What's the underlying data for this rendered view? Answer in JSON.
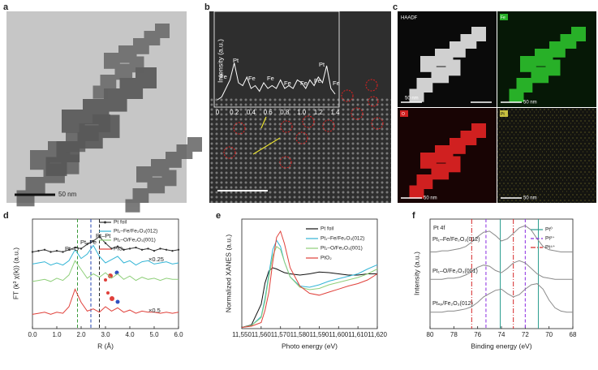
{
  "panel_labels": [
    "a",
    "b",
    "c",
    "d",
    "e",
    "f"
  ],
  "images": {
    "a_scale": "50 nm",
    "c_labels": [
      "HAADF",
      "Fe",
      "O",
      "Pt"
    ],
    "c_scales": [
      "50 nm",
      "50 nm",
      "50 nm",
      "50 nm"
    ]
  },
  "chart_data": [
    {
      "type": "line",
      "ylabel": "Intensity (a.u.)",
      "x": [
        0,
        0.05,
        0.1,
        0.15,
        0.2,
        0.25,
        0.3,
        0.35,
        0.4,
        0.45,
        0.5,
        0.55,
        0.6,
        0.65,
        0.7,
        0.75,
        0.8,
        0.85,
        0.9,
        0.95,
        1.0,
        1.05,
        1.1,
        1.15,
        1.2,
        1.25,
        1.3,
        1.35,
        1.4
      ],
      "series": [
        {
          "color": "#ffffff",
          "values": [
            0.1,
            0.15,
            0.3,
            0.45,
            0.75,
            0.4,
            0.35,
            0.5,
            0.3,
            0.35,
            0.25,
            0.4,
            0.3,
            0.35,
            0.3,
            0.45,
            0.3,
            0.35,
            0.3,
            0.45,
            0.4,
            0.3,
            0.45,
            0.35,
            0.5,
            0.4,
            0.7,
            0.3,
            0.2
          ]
        }
      ],
      "xlim": [
        0,
        1.4
      ],
      "ylim": [
        0,
        1
      ],
      "xticks": [
        0,
        0.2,
        0.4,
        0.6,
        0.8,
        {
          "value": 1,
          "label": "1.0"
        },
        1.2,
        1.4
      ],
      "annotations": [
        "Fe",
        "Pt",
        "Fe",
        "Fe",
        "Fe",
        "Fe",
        "Fe",
        "Pt",
        "Fe"
      ]
    },
    {
      "type": "line",
      "xlabel": "R (Å)",
      "ylabel": "FT (k³ χ(k)) (a.u.)",
      "x": [
        0,
        0.25,
        0.5,
        0.75,
        1,
        1.25,
        1.5,
        1.75,
        2,
        2.25,
        2.5,
        2.75,
        3,
        3.25,
        3.5,
        3.75,
        4,
        4.25,
        4.5,
        4.75,
        5,
        5.25,
        5.5,
        5.75,
        6
      ],
      "series": [
        {
          "name": "Pt foil",
          "color": "#333333",
          "marker": true,
          "values": [
            7.0,
            7.1,
            7.2,
            7.0,
            7.1,
            7.0,
            7.2,
            7.4,
            7.3,
            7.7,
            8.0,
            8.4,
            7.8,
            7.3,
            7.5,
            7.2,
            7.3,
            7.4,
            7.2,
            7.3,
            7.1,
            7.3,
            7.2,
            7.1,
            7.2
          ]
        },
        {
          "name": "Pt₁–Fe/Fe₂O₃(012)",
          "color": "#33b5d6",
          "values": [
            5.9,
            6.0,
            6.1,
            5.8,
            6.0,
            5.8,
            6.2,
            7.2,
            6.4,
            6.8,
            7.6,
            6.6,
            6.0,
            6.3,
            6.6,
            6.0,
            6.2,
            5.8,
            6.1,
            6.2,
            5.9,
            6.0,
            6.1,
            5.9,
            6.0
          ]
        },
        {
          "name": "Pt₁–O/Fe₂O₃(001)",
          "color": "#8fcf7a",
          "values": [
            4.3,
            4.4,
            4.5,
            4.3,
            4.6,
            4.4,
            4.9,
            6.2,
            5.4,
            4.6,
            5.0,
            4.7,
            5.1,
            4.6,
            5.0,
            4.5,
            4.8,
            4.4,
            4.7,
            4.5,
            4.6,
            4.4,
            4.6,
            4.5,
            4.5
          ]
        },
        {
          "name": "PtO₂",
          "color": "#e0403a",
          "values": [
            1.3,
            1.4,
            1.5,
            1.3,
            1.5,
            1.4,
            2.0,
            3.6,
            2.4,
            1.6,
            1.8,
            1.5,
            2.0,
            1.6,
            1.9,
            1.5,
            1.7,
            1.4,
            1.6,
            1.5,
            1.5,
            1.4,
            1.5,
            1.4,
            1.5
          ]
        }
      ],
      "xlim": [
        0,
        6
      ],
      "ylim": [
        0,
        10
      ],
      "xticks": [
        {
          "value": 0,
          "label": "0.0"
        },
        {
          "value": 1,
          "label": "1.0"
        },
        {
          "value": 2,
          "label": "2.0"
        },
        {
          "value": 3,
          "label": "3.0"
        },
        {
          "value": 4,
          "label": "4.0"
        },
        {
          "value": 5,
          "label": "5.0"
        },
        {
          "value": 6,
          "label": "6.0"
        }
      ],
      "vlines": [
        {
          "x": 1.85,
          "color": "#3a9a3a",
          "dash": "dashed"
        },
        {
          "x": 2.4,
          "color": "#2040b0",
          "dash": "dashed"
        },
        {
          "x": 2.75,
          "color": "#222222",
          "dash": "dashed"
        }
      ],
      "annotations": [
        "Pt–O",
        "Pt–Fe",
        "Pt–Pt",
        "×0.25",
        "×0.5"
      ]
    },
    {
      "type": "line",
      "xlabel": "Photo energy (eV)",
      "ylabel": "Normalized XANES (a.u.)",
      "x": [
        11550,
        11555,
        11560,
        11562,
        11564,
        11566,
        11568,
        11570,
        11572,
        11575,
        11580,
        11585,
        11590,
        11595,
        11600,
        11605,
        11610,
        11615,
        11620
      ],
      "series": [
        {
          "name": "Pt foil",
          "color": "#111111",
          "values": [
            0.02,
            0.06,
            0.4,
            0.75,
            0.95,
            1.0,
            0.98,
            0.95,
            0.92,
            0.9,
            0.88,
            0.9,
            0.93,
            0.92,
            0.9,
            0.88,
            0.88,
            0.9,
            0.9
          ]
        },
        {
          "name": "Pt₁–Fe/Fe₂O₃(012)",
          "color": "#33b5d6",
          "values": [
            0.02,
            0.05,
            0.2,
            0.5,
            0.9,
            1.3,
            1.45,
            1.35,
            1.1,
            0.85,
            0.7,
            0.68,
            0.72,
            0.78,
            0.82,
            0.86,
            0.9,
            0.98,
            1.05
          ]
        },
        {
          "name": "Pt₁–O/Fe₂O₃(001)",
          "color": "#8fcf7a",
          "values": [
            0.02,
            0.05,
            0.18,
            0.45,
            0.85,
            1.2,
            1.35,
            1.3,
            1.1,
            0.85,
            0.68,
            0.64,
            0.66,
            0.72,
            0.76,
            0.8,
            0.84,
            0.9,
            0.98
          ]
        },
        {
          "name": "PtO₂",
          "color": "#e0403a",
          "values": [
            0.02,
            0.04,
            0.1,
            0.3,
            0.6,
            1.1,
            1.5,
            1.6,
            1.4,
            1.0,
            0.7,
            0.58,
            0.55,
            0.6,
            0.65,
            0.7,
            0.74,
            0.8,
            0.9
          ]
        }
      ],
      "xlim": [
        11550,
        11620
      ],
      "ylim": [
        0,
        1.8
      ],
      "xticks": [
        {
          "value": 11550,
          "label": "11,550"
        },
        {
          "value": 11560,
          "label": "11,560"
        },
        {
          "value": 11570,
          "label": "11,570"
        },
        {
          "value": 11580,
          "label": "11,580"
        },
        {
          "value": 11590,
          "label": "11,590"
        },
        {
          "value": 11600,
          "label": "11,600"
        },
        {
          "value": 11610,
          "label": "11,610"
        },
        {
          "value": 11620,
          "label": "11,620"
        }
      ]
    },
    {
      "type": "line",
      "xlabel": "Binding energy (eV)",
      "ylabel": "Intensity (a.u.)",
      "subtitle": "Pt 4f",
      "x": [
        80,
        79.5,
        79,
        78.5,
        78,
        77.5,
        77,
        76.5,
        76,
        75.5,
        75,
        74.5,
        74,
        73.5,
        73,
        72.5,
        72,
        71.5,
        71,
        70.5,
        70,
        69.5,
        69,
        68.5,
        68
      ],
      "series": [
        {
          "name": "Pt₁–Fe/Fe₂O₃(012)",
          "color": "#8a8a8a",
          "values": [
            7.0,
            7.0,
            7.1,
            7.1,
            7.2,
            7.3,
            7.5,
            7.9,
            8.4,
            8.8,
            8.9,
            8.5,
            8.0,
            8.2,
            8.7,
            9.2,
            9.4,
            9.0,
            8.2,
            7.5,
            7.2,
            7.1,
            7.0,
            7.0,
            7.0
          ]
        },
        {
          "name": "Pt₁–O/Fe₂O₃(001)",
          "color": "#8a8a8a",
          "values": [
            4.5,
            4.5,
            4.5,
            4.6,
            4.6,
            4.7,
            4.9,
            5.2,
            5.6,
            5.8,
            5.7,
            5.3,
            5.1,
            5.5,
            6.0,
            6.2,
            6.0,
            5.5,
            5.0,
            4.7,
            4.6,
            4.5,
            4.5,
            4.5,
            4.5
          ]
        },
        {
          "name": "Ptₙₚ/Fe₂O₃(012)",
          "color": "#8a8a8a",
          "values": [
            1.5,
            1.5,
            1.5,
            1.6,
            1.6,
            1.7,
            1.8,
            2.0,
            2.4,
            2.9,
            3.2,
            3.5,
            3.6,
            3.2,
            2.9,
            3.1,
            3.6,
            4.0,
            4.1,
            3.6,
            2.6,
            1.9,
            1.6,
            1.5,
            1.5
          ]
        }
      ],
      "xlim": [
        80,
        68
      ],
      "ylim": [
        0,
        10
      ],
      "xticks": [
        80,
        78,
        76,
        74,
        72,
        70,
        68
      ],
      "legend": [
        {
          "name": "Pt⁰",
          "color": "#2a9d8f",
          "dash": "solid"
        },
        {
          "name": "Pt²⁺",
          "color": "#8a2be2",
          "dash": "dashed"
        },
        {
          "name": "Pt⁴⁺",
          "color": "#d62728",
          "dash": "dashdot"
        }
      ],
      "vlines": [
        {
          "x": 76.5,
          "color": "#d62728",
          "dash": "dashdot"
        },
        {
          "x": 75.3,
          "color": "#8a2be2",
          "dash": "dashed"
        },
        {
          "x": 74.1,
          "color": "#2a9d8f",
          "dash": "solid"
        },
        {
          "x": 73.0,
          "color": "#d62728",
          "dash": "dashdot"
        },
        {
          "x": 72.0,
          "color": "#8a2be2",
          "dash": "dashed"
        },
        {
          "x": 70.9,
          "color": "#2a9d8f",
          "dash": "solid"
        }
      ]
    }
  ]
}
